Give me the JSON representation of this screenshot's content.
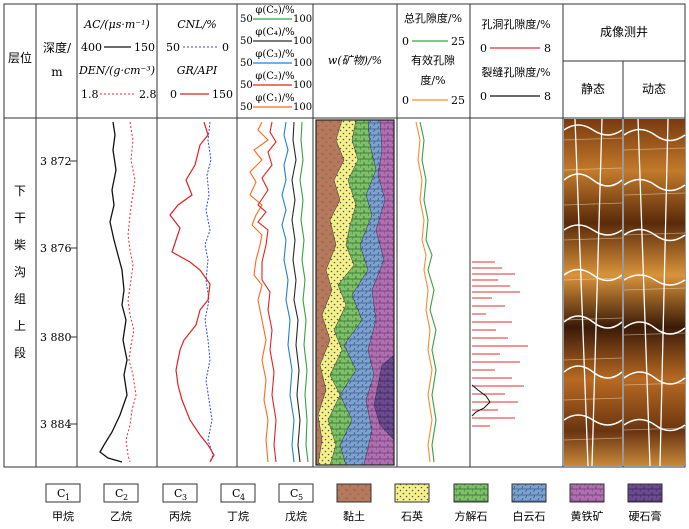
{
  "header": {
    "layer_label": "层位",
    "depth_label": "深度/",
    "depth_unit": "m",
    "ac_label": "AC/(μs·m⁻¹)",
    "ac_min": "400",
    "ac_max": "150",
    "den_label": "DEN/(g·cm⁻³)",
    "den_min": "1.8",
    "den_max": "2.8",
    "cnl_label": "CNL/%",
    "cnl_min": "50",
    "cnl_max": "0",
    "gr_label": "GR/API",
    "gr_min": "0",
    "gr_max": "150",
    "phi_labels": [
      "φ(C₅)/%",
      "φ(C₄)/%",
      "φ(C₃)/%",
      "φ(C₂)/%",
      "φ(C₁)/%"
    ],
    "phi_min": "50",
    "phi_max": "100",
    "mineral_label": "w(矿物)/%",
    "total_por_label": "总孔隙度/%",
    "total_por_min": "0",
    "total_por_max": "25",
    "eff_por_label_1": "有效孔隙",
    "eff_por_label_2": "度/%",
    "eff_por_min": "0",
    "eff_por_max": "25",
    "vug_label": "孔洞孔隙度/%",
    "vug_min": "0",
    "vug_max": "8",
    "frac_label": "裂缝孔隙度/%",
    "frac_min": "0",
    "frac_max": "8",
    "image_log_label": "成像测井",
    "static_label": "静态",
    "dynamic_label": "动态"
  },
  "layer_name": [
    "下",
    "干",
    "柴",
    "沟",
    "组",
    "上",
    "段"
  ],
  "depth_ticks": [
    "3 872",
    "3 876",
    "3 880",
    "3 884"
  ],
  "legend": [
    {
      "symbol": "C",
      "sub": "1",
      "name": "甲烷"
    },
    {
      "symbol": "C",
      "sub": "2",
      "name": "乙烷"
    },
    {
      "symbol": "C",
      "sub": "3",
      "name": "丙烷"
    },
    {
      "symbol": "C",
      "sub": "4",
      "name": "丁烷"
    },
    {
      "symbol": "C",
      "sub": "5",
      "name": "戊烷"
    },
    {
      "name": "黏土",
      "color": "#b57a5e"
    },
    {
      "name": "石英",
      "color": "#f4f08a"
    },
    {
      "name": "方解石",
      "color": "#7fbf6a"
    },
    {
      "name": "白云石",
      "color": "#7da2cf"
    },
    {
      "name": "黄铁矿",
      "color": "#b16fb3"
    },
    {
      "name": "硬石膏",
      "color": "#6b4a8f"
    }
  ],
  "colors": {
    "ac": "#111111",
    "den": "#e03030",
    "cnl": "#2d4fc4",
    "gr": "#e02020",
    "c1": "#ff6a1a",
    "c2": "#e82020",
    "c3": "#2080d0",
    "c4": "#2a2a2a",
    "c5": "#3aa040",
    "total_por": "#3aa040",
    "eff_por": "#ff8a2a",
    "vug": "#e03030",
    "frac": "#111111"
  }
}
